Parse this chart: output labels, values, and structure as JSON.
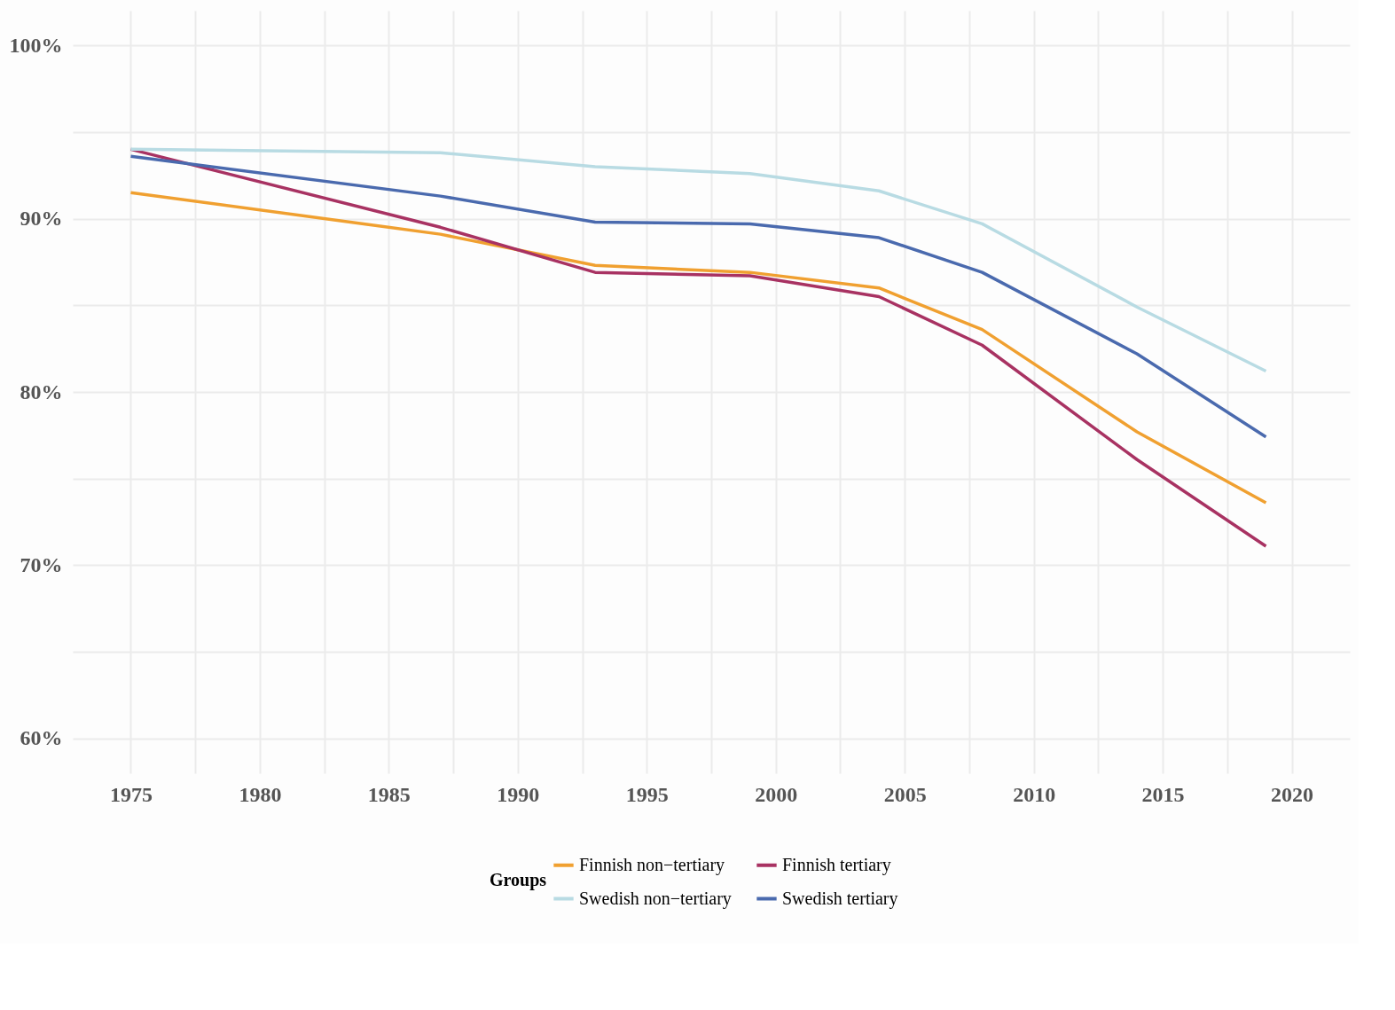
{
  "chart_data": {
    "type": "line",
    "x": [
      1975,
      1987,
      1993,
      1999,
      2004,
      2008,
      2014,
      2019
    ],
    "series": [
      {
        "name": "Finnish non−tertiary",
        "color": "#f0a030",
        "values": [
          91.5,
          89.1,
          87.3,
          86.9,
          86.0,
          83.6,
          77.7,
          73.6
        ]
      },
      {
        "name": "Finnish tertiary",
        "color": "#a83262",
        "values": [
          94.0,
          89.5,
          86.9,
          86.7,
          85.5,
          82.7,
          76.1,
          71.1
        ]
      },
      {
        "name": "Swedish non−tertiary",
        "color": "#b8dbe3",
        "values": [
          94.0,
          93.8,
          93.0,
          92.6,
          91.6,
          89.7,
          84.9,
          81.2
        ]
      },
      {
        "name": "Swedish tertiary",
        "color": "#4a6aae",
        "values": [
          93.6,
          91.3,
          89.8,
          89.7,
          88.9,
          86.9,
          82.2,
          77.4
        ]
      }
    ],
    "xlim": [
      1972.75,
      2022.25
    ],
    "ylim": [
      58,
      102
    ],
    "xticks": [
      1975,
      {
        "value": 1977.5,
        "label": null
      },
      1980,
      {
        "value": 1982.5,
        "label": null
      },
      1985,
      {
        "value": 1987.5,
        "label": null
      },
      1990,
      {
        "value": 1992.5,
        "label": null
      },
      1995,
      {
        "value": 1997.5,
        "label": null
      },
      2000,
      {
        "value": 2002.5,
        "label": null
      },
      2005,
      {
        "value": 2007.5,
        "label": null
      },
      2010,
      {
        "value": 2012.5,
        "label": null
      },
      2015,
      {
        "value": 2017.5,
        "label": null
      },
      2020
    ],
    "yticks": [
      {
        "value": 60,
        "label": "60%"
      },
      {
        "value": 65,
        "label": null
      },
      {
        "value": 70,
        "label": "70%"
      },
      {
        "value": 75,
        "label": null
      },
      {
        "value": 80,
        "label": "80%"
      },
      {
        "value": 85,
        "label": null
      },
      {
        "value": 90,
        "label": "90%"
      },
      {
        "value": 95,
        "label": null
      },
      {
        "value": 100,
        "label": "100%"
      }
    ],
    "legend_title": "Groups",
    "legend": "bottom",
    "grid": true,
    "marker": "none",
    "line_style": "solid"
  }
}
